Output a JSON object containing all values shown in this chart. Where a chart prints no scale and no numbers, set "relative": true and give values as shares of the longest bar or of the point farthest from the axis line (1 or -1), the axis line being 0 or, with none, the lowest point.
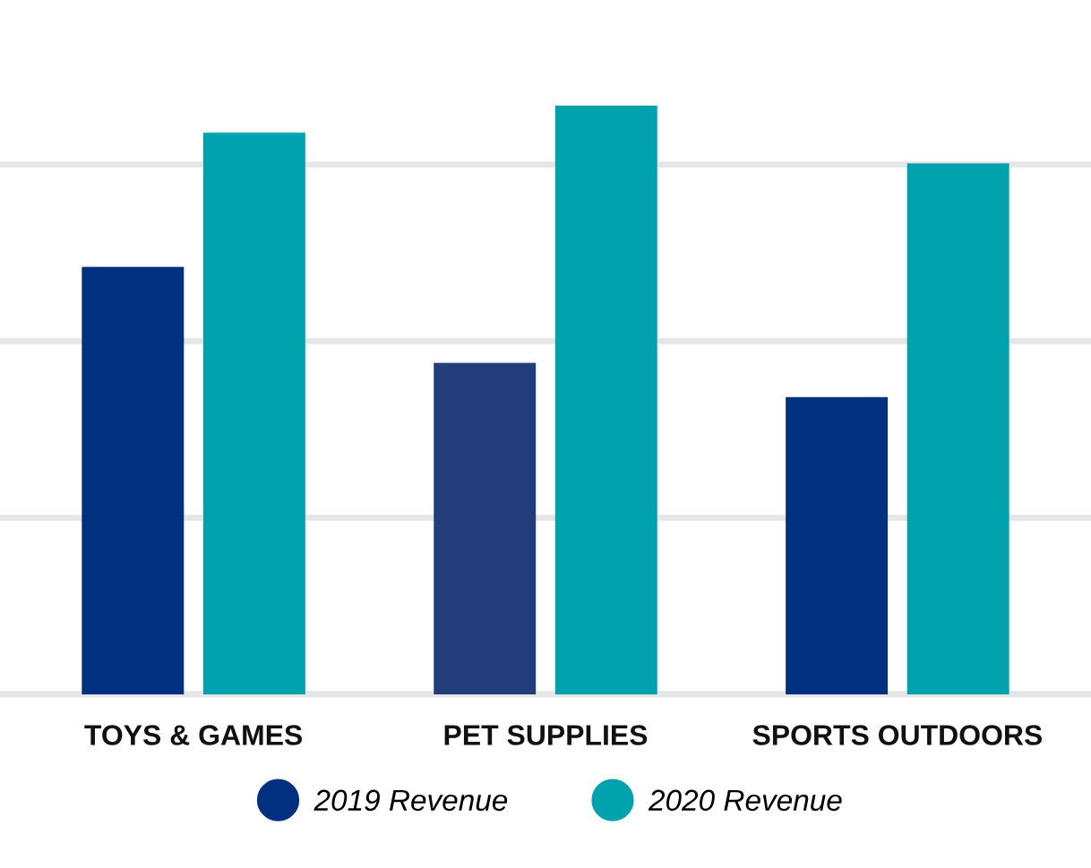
{
  "chart_data": {
    "type": "bar",
    "relative": true,
    "categories": [
      "TOYS & GAMES",
      "PET SUPPLIES",
      "SPORTS OUTDOORS"
    ],
    "series": [
      {
        "name": "2019 Revenue",
        "color": "#00307f",
        "colors": [
          "#00307f",
          "#233d7b",
          "#00307f"
        ],
        "values": [
          0.726,
          0.563,
          0.505
        ]
      },
      {
        "name": "2020 Revenue",
        "color": "#00a3ad",
        "values": [
          0.954,
          1,
          0.902
        ]
      }
    ],
    "grid": "y",
    "legend": "bottom",
    "marker": "circle"
  }
}
